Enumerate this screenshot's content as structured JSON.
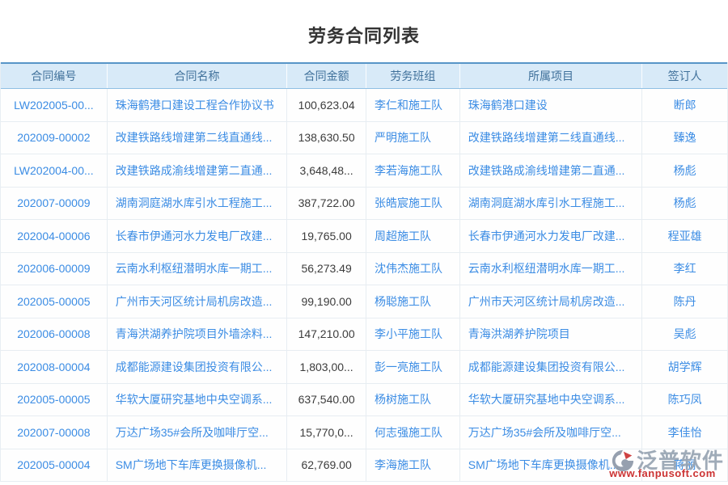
{
  "page": {
    "title": "劳务合同列表"
  },
  "table": {
    "columns": [
      {
        "key": "contract_no",
        "label": "合同编号"
      },
      {
        "key": "contract_name",
        "label": "合同名称"
      },
      {
        "key": "amount",
        "label": "合同金额"
      },
      {
        "key": "team",
        "label": "劳务班组"
      },
      {
        "key": "project",
        "label": "所属项目"
      },
      {
        "key": "signer",
        "label": "签订人"
      }
    ],
    "rows": [
      {
        "contract_no": "LW202005-00...",
        "contract_name": "珠海鹤港口建设工程合作协议书",
        "amount": "100,623.04",
        "team": "李仁和施工队",
        "project": "珠海鹤港口建设",
        "signer": "断郎"
      },
      {
        "contract_no": "202009-00002",
        "contract_name": "改建铁路线增建第二线直通线...",
        "amount": "138,630.50",
        "team": "严明施工队",
        "project": "改建铁路线增建第二线直通线...",
        "signer": "臻逸"
      },
      {
        "contract_no": "LW202004-00...",
        "contract_name": "改建铁路成渝线增建第二直通...",
        "amount": "3,648,48...",
        "team": "李若海施工队",
        "project": "改建铁路成渝线增建第二直通...",
        "signer": "杨彪"
      },
      {
        "contract_no": "202007-00009",
        "contract_name": "湖南洞庭湖水库引水工程施工...",
        "amount": "387,722.00",
        "team": "张皓宸施工队",
        "project": "湖南洞庭湖水库引水工程施工...",
        "signer": "杨彪"
      },
      {
        "contract_no": "202004-00006",
        "contract_name": "长春市伊通河水力发电厂改建...",
        "amount": "19,765.00",
        "team": "周超施工队",
        "project": "长春市伊通河水力发电厂改建...",
        "signer": "程亚雄"
      },
      {
        "contract_no": "202006-00009",
        "contract_name": "云南水利枢纽潜明水库一期工...",
        "amount": "56,273.49",
        "team": "沈伟杰施工队",
        "project": "云南水利枢纽潜明水库一期工...",
        "signer": "李红"
      },
      {
        "contract_no": "202005-00005",
        "contract_name": "广州市天河区统计局机房改造...",
        "amount": "99,190.00",
        "team": "杨聪施工队",
        "project": "广州市天河区统计局机房改造...",
        "signer": "陈丹"
      },
      {
        "contract_no": "202006-00008",
        "contract_name": "青海洪湖养护院项目外墙涂料...",
        "amount": "147,210.00",
        "team": "李小平施工队",
        "project": "青海洪湖养护院项目",
        "signer": "吴彪"
      },
      {
        "contract_no": "202008-00004",
        "contract_name": "成都能源建设集团投资有限公...",
        "amount": "1,803,00...",
        "team": "彭一亮施工队",
        "project": "成都能源建设集团投资有限公...",
        "signer": "胡学辉"
      },
      {
        "contract_no": "202005-00005",
        "contract_name": "华软大厦研究基地中央空调系...",
        "amount": "637,540.00",
        "team": "杨树施工队",
        "project": "华软大厦研究基地中央空调系...",
        "signer": "陈巧凤"
      },
      {
        "contract_no": "202007-00008",
        "contract_name": "万达广场35#会所及咖啡厅空...",
        "amount": "15,770,0...",
        "team": "何志强施工队",
        "project": "万达广场35#会所及咖啡厅空...",
        "signer": "李佳怡"
      },
      {
        "contract_no": "202005-00004",
        "contract_name": "SM广场地下车库更换摄像机...",
        "amount": "62,769.00",
        "team": "李海施工队",
        "project": "SM广场地下车库更换摄像机...",
        "signer": "蒋丽"
      }
    ]
  },
  "watermark": {
    "brand": "泛普软件",
    "url": "www.fanpusoft.com"
  },
  "colors": {
    "header_bg": "#d8eaf8",
    "header_text": "#40719b",
    "header_border": "#5795c7",
    "link_text": "#3b8ce4",
    "amount_text": "#3c3c3c",
    "watermark_gray": "#98a4b3",
    "watermark_red": "#cc3333"
  }
}
